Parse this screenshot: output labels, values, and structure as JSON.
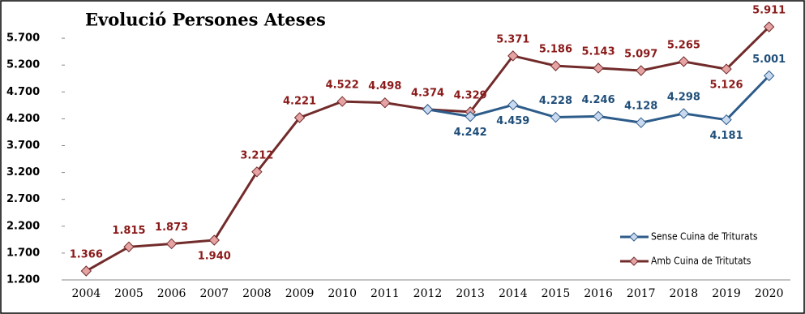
{
  "chart_data": {
    "type": "line",
    "title": "Evolució Persones Ateses",
    "categories": [
      "2004",
      "2005",
      "2006",
      "2007",
      "2008",
      "2009",
      "2010",
      "2011",
      "2012",
      "2013",
      "2014",
      "2015",
      "2016",
      "2017",
      "2018",
      "2019",
      "2020"
    ],
    "series": [
      {
        "name": "Sense Cuina de Triturats",
        "color": "#2e5c8a",
        "marker_color": "#c9daf0",
        "label_color": "#1f4e79",
        "values": [
          null,
          null,
          null,
          null,
          null,
          null,
          null,
          null,
          4374,
          4242,
          4459,
          4228,
          4246,
          4128,
          4298,
          4181,
          5001
        ],
        "value_labels": [
          null,
          null,
          null,
          null,
          null,
          null,
          null,
          null,
          null,
          "4.242",
          "4.459",
          "4.228",
          "4.246",
          "4.128",
          "4.298",
          "4.181",
          "5.001"
        ]
      },
      {
        "name": "Amb Cuina de Tritutats",
        "color": "#722b2b",
        "marker_color": "#e6a3a3",
        "label_color": "#8b1a1a",
        "values": [
          1366,
          1815,
          1873,
          1940,
          3212,
          4221,
          4522,
          4498,
          4374,
          4329,
          5371,
          5186,
          5143,
          5097,
          5265,
          5126,
          5911
        ],
        "value_labels": [
          "1.366",
          "1.815",
          "1.873",
          "1.940",
          "3.212",
          "4.221",
          "4.522",
          "4.498",
          "4.374",
          "4.329",
          "5.371",
          "5.186",
          "5.143",
          "5.097",
          "5.265",
          "5.126",
          "5.911"
        ]
      }
    ],
    "ylim": [
      1200,
      6200
    ],
    "yticks": [
      {
        "value": 1200,
        "label": "1.200"
      },
      {
        "value": 1700,
        "label": "1.700"
      },
      {
        "value": 2200,
        "label": "2.200"
      },
      {
        "value": 2700,
        "label": "2.700"
      },
      {
        "value": 3200,
        "label": "3.200"
      },
      {
        "value": 3700,
        "label": "3.700"
      },
      {
        "value": 4200,
        "label": "4.200"
      },
      {
        "value": 4700,
        "label": "4.700"
      },
      {
        "value": 5200,
        "label": "5.200"
      },
      {
        "value": 5700,
        "label": "5.700"
      }
    ],
    "grid": false,
    "legend": "lower right"
  }
}
